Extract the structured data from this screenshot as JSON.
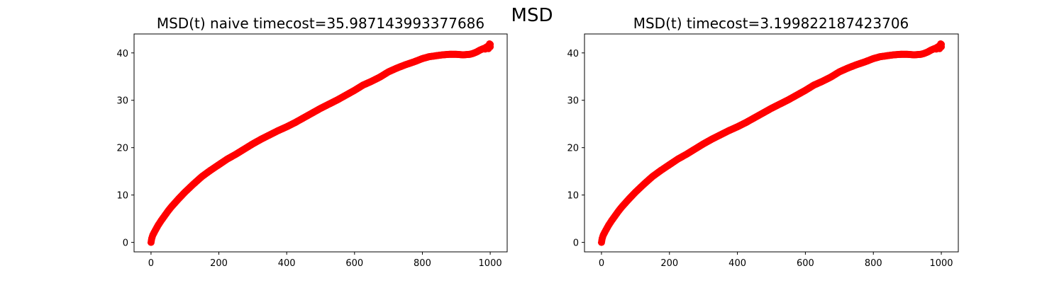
{
  "figure": {
    "suptitle": "MSD"
  },
  "chart_data": [
    {
      "type": "scatter",
      "title": "MSD(t) naive timecost=35.987143993377686",
      "xlabel": "",
      "ylabel": "",
      "xlim": [
        -50,
        1050
      ],
      "ylim": [
        -2,
        44
      ],
      "xticks": [
        0,
        200,
        400,
        600,
        800,
        1000
      ],
      "yticks": [
        0,
        10,
        20,
        30,
        40
      ],
      "grid": false,
      "color": "#ff0000",
      "series": [
        {
          "x": [
            0,
            2,
            5,
            10,
            20,
            30,
            40,
            50,
            60,
            80,
            100,
            125,
            150,
            175,
            200,
            225,
            250,
            275,
            300,
            325,
            350,
            375,
            400,
            425,
            450,
            475,
            500,
            525,
            550,
            575,
            600,
            625,
            650,
            675,
            700,
            725,
            750,
            775,
            800,
            820,
            840,
            860,
            880,
            900,
            920,
            940,
            950,
            960,
            970,
            980,
            990,
            995,
            1000
          ],
          "y": [
            0,
            0.8,
            1.5,
            2.2,
            3.5,
            4.6,
            5.6,
            6.6,
            7.5,
            9.1,
            10.6,
            12.3,
            13.9,
            15.2,
            16.4,
            17.6,
            18.6,
            19.7,
            20.8,
            21.8,
            22.7,
            23.6,
            24.4,
            25.3,
            26.3,
            27.3,
            28.3,
            29.2,
            30.1,
            31.1,
            32.1,
            33.2,
            34.0,
            34.9,
            36.0,
            36.8,
            37.5,
            38.1,
            38.8,
            39.2,
            39.4,
            39.6,
            39.7,
            39.7,
            39.6,
            39.7,
            39.9,
            40.2,
            40.6,
            40.9,
            41.2,
            41.5,
            41.8
          ]
        }
      ]
    },
    {
      "type": "scatter",
      "title": "MSD(t) timecost=3.199822187423706",
      "xlabel": "",
      "ylabel": "",
      "xlim": [
        -50,
        1050
      ],
      "ylim": [
        -2,
        44
      ],
      "xticks": [
        0,
        200,
        400,
        600,
        800,
        1000
      ],
      "yticks": [
        0,
        10,
        20,
        30,
        40
      ],
      "grid": false,
      "color": "#ff0000",
      "series": [
        {
          "x": [
            0,
            2,
            5,
            10,
            20,
            30,
            40,
            50,
            60,
            80,
            100,
            125,
            150,
            175,
            200,
            225,
            250,
            275,
            300,
            325,
            350,
            375,
            400,
            425,
            450,
            475,
            500,
            525,
            550,
            575,
            600,
            625,
            650,
            675,
            700,
            725,
            750,
            775,
            800,
            820,
            840,
            860,
            880,
            900,
            920,
            940,
            950,
            960,
            970,
            980,
            990,
            995,
            1000
          ],
          "y": [
            0,
            0.8,
            1.5,
            2.2,
            3.5,
            4.6,
            5.6,
            6.6,
            7.5,
            9.1,
            10.6,
            12.3,
            13.9,
            15.2,
            16.4,
            17.6,
            18.6,
            19.7,
            20.8,
            21.8,
            22.7,
            23.6,
            24.4,
            25.3,
            26.3,
            27.3,
            28.3,
            29.2,
            30.1,
            31.1,
            32.1,
            33.2,
            34.0,
            34.9,
            36.0,
            36.8,
            37.5,
            38.1,
            38.8,
            39.2,
            39.4,
            39.6,
            39.7,
            39.7,
            39.6,
            39.7,
            39.9,
            40.2,
            40.6,
            40.9,
            41.2,
            41.5,
            41.8
          ]
        }
      ]
    }
  ]
}
